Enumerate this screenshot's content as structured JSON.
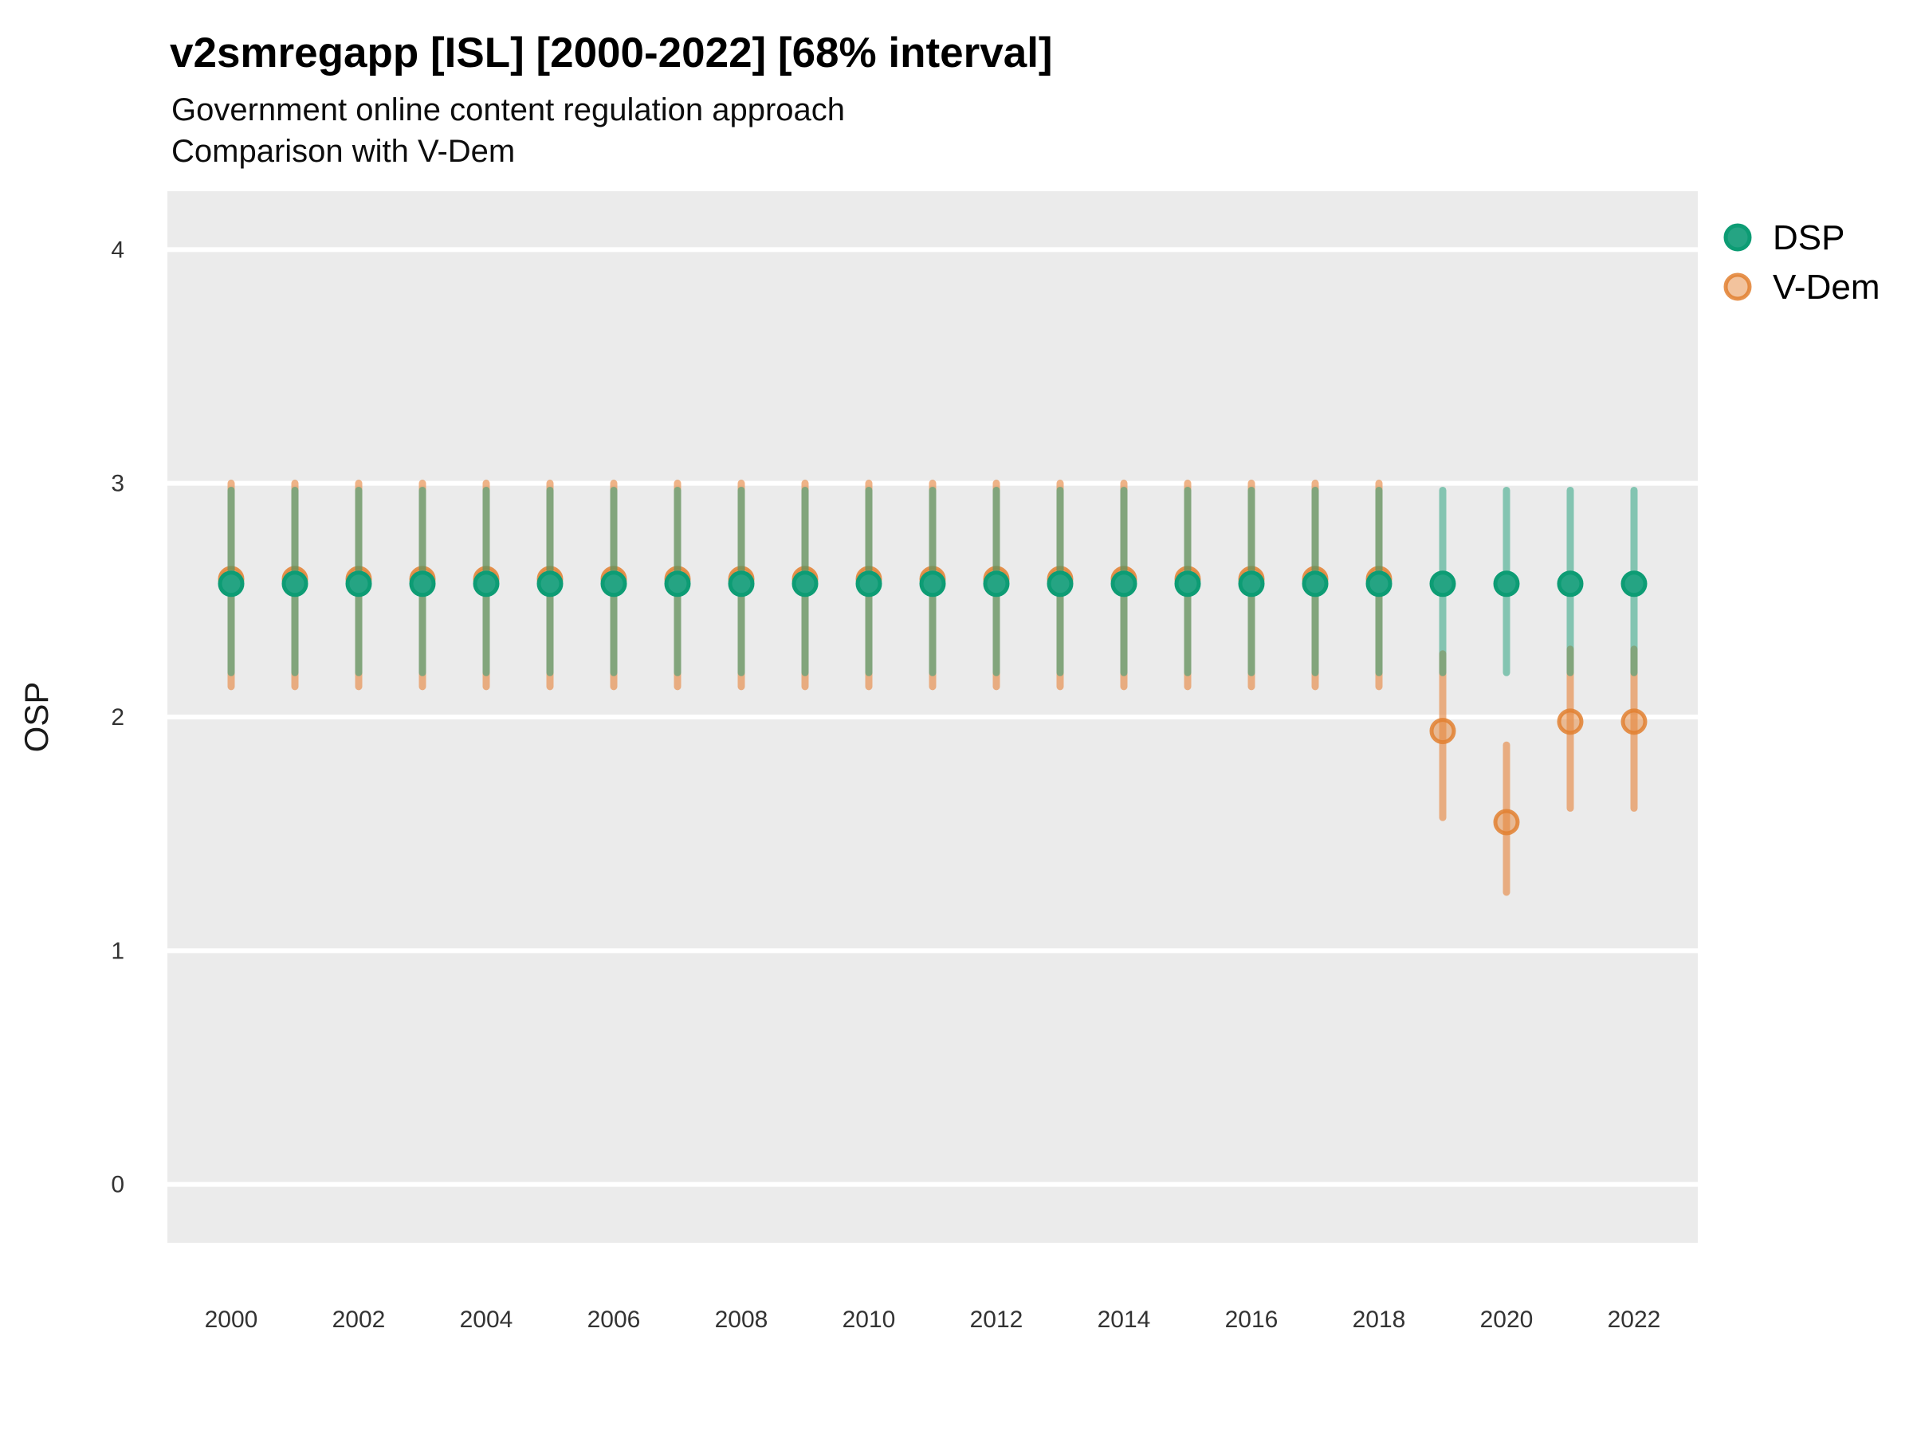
{
  "header": {
    "title": "v2smregapp [ISL] [2000-2022] [68% interval]",
    "subtitle_line1": "Government online content regulation approach",
    "subtitle_line2": "Comparison with V-Dem"
  },
  "chart_data": {
    "type": "pointrange",
    "title": "v2smregapp [ISL] [2000-2022] [68% interval]",
    "subtitle": [
      "Government online content regulation approach",
      "Comparison with V-Dem"
    ],
    "xlabel": "",
    "ylabel": "OSP",
    "xlim": [
      1999,
      2023
    ],
    "ylim": [
      -0.25,
      4.25
    ],
    "xticks": [
      2000,
      2002,
      2004,
      2006,
      2008,
      2010,
      2012,
      2014,
      2016,
      2018,
      2020,
      2022
    ],
    "yticks": [
      0,
      1,
      2,
      3,
      4
    ],
    "grid": "horizontal-major-only",
    "legend_position": "right",
    "interval_label": "68% interval",
    "colors": {
      "panel_bg": "#ebebeb",
      "grid_line": "#ffffff",
      "tick_text": "#333333",
      "axis_title_text": "#1a1a1a",
      "dsp_accent": "#1b9e77",
      "vdem_accent": "#e6873c"
    },
    "series": [
      {
        "name": "DSP",
        "color": "#1b9e77",
        "line_rgba": "rgba(27,158,119,0.50)",
        "dot_fill": "#25a483",
        "dot_stroke": "#0d9c74",
        "points": [
          {
            "year": 2000,
            "est": 2.57,
            "lo": 2.19,
            "hi": 2.97
          },
          {
            "year": 2001,
            "est": 2.57,
            "lo": 2.19,
            "hi": 2.97
          },
          {
            "year": 2002,
            "est": 2.57,
            "lo": 2.19,
            "hi": 2.97
          },
          {
            "year": 2003,
            "est": 2.57,
            "lo": 2.19,
            "hi": 2.97
          },
          {
            "year": 2004,
            "est": 2.57,
            "lo": 2.19,
            "hi": 2.97
          },
          {
            "year": 2005,
            "est": 2.57,
            "lo": 2.19,
            "hi": 2.97
          },
          {
            "year": 2006,
            "est": 2.57,
            "lo": 2.19,
            "hi": 2.97
          },
          {
            "year": 2007,
            "est": 2.57,
            "lo": 2.19,
            "hi": 2.97
          },
          {
            "year": 2008,
            "est": 2.57,
            "lo": 2.19,
            "hi": 2.97
          },
          {
            "year": 2009,
            "est": 2.57,
            "lo": 2.19,
            "hi": 2.97
          },
          {
            "year": 2010,
            "est": 2.57,
            "lo": 2.19,
            "hi": 2.97
          },
          {
            "year": 2011,
            "est": 2.57,
            "lo": 2.19,
            "hi": 2.97
          },
          {
            "year": 2012,
            "est": 2.57,
            "lo": 2.19,
            "hi": 2.97
          },
          {
            "year": 2013,
            "est": 2.57,
            "lo": 2.19,
            "hi": 2.97
          },
          {
            "year": 2014,
            "est": 2.57,
            "lo": 2.19,
            "hi": 2.97
          },
          {
            "year": 2015,
            "est": 2.57,
            "lo": 2.19,
            "hi": 2.97
          },
          {
            "year": 2016,
            "est": 2.57,
            "lo": 2.19,
            "hi": 2.97
          },
          {
            "year": 2017,
            "est": 2.57,
            "lo": 2.19,
            "hi": 2.97
          },
          {
            "year": 2018,
            "est": 2.57,
            "lo": 2.19,
            "hi": 2.97
          },
          {
            "year": 2019,
            "est": 2.57,
            "lo": 2.19,
            "hi": 2.97
          },
          {
            "year": 2020,
            "est": 2.57,
            "lo": 2.19,
            "hi": 2.97
          },
          {
            "year": 2021,
            "est": 2.57,
            "lo": 2.19,
            "hi": 2.97
          },
          {
            "year": 2022,
            "est": 2.57,
            "lo": 2.19,
            "hi": 2.97
          }
        ]
      },
      {
        "name": "V-Dem",
        "color": "#e6873c",
        "line_rgba": "rgba(230,139,70,0.65)",
        "dot_fill": "rgba(230,135,60,0.50)",
        "dot_stroke": "rgba(226,128,48,0.85)",
        "points": [
          {
            "year": 2000,
            "est": 2.59,
            "lo": 2.13,
            "hi": 3.0
          },
          {
            "year": 2001,
            "est": 2.59,
            "lo": 2.13,
            "hi": 3.0
          },
          {
            "year": 2002,
            "est": 2.59,
            "lo": 2.13,
            "hi": 3.0
          },
          {
            "year": 2003,
            "est": 2.59,
            "lo": 2.13,
            "hi": 3.0
          },
          {
            "year": 2004,
            "est": 2.59,
            "lo": 2.13,
            "hi": 3.0
          },
          {
            "year": 2005,
            "est": 2.59,
            "lo": 2.13,
            "hi": 3.0
          },
          {
            "year": 2006,
            "est": 2.59,
            "lo": 2.13,
            "hi": 3.0
          },
          {
            "year": 2007,
            "est": 2.59,
            "lo": 2.13,
            "hi": 3.0
          },
          {
            "year": 2008,
            "est": 2.59,
            "lo": 2.13,
            "hi": 3.0
          },
          {
            "year": 2009,
            "est": 2.59,
            "lo": 2.13,
            "hi": 3.0
          },
          {
            "year": 2010,
            "est": 2.59,
            "lo": 2.13,
            "hi": 3.0
          },
          {
            "year": 2011,
            "est": 2.59,
            "lo": 2.13,
            "hi": 3.0
          },
          {
            "year": 2012,
            "est": 2.59,
            "lo": 2.13,
            "hi": 3.0
          },
          {
            "year": 2013,
            "est": 2.59,
            "lo": 2.13,
            "hi": 3.0
          },
          {
            "year": 2014,
            "est": 2.59,
            "lo": 2.13,
            "hi": 3.0
          },
          {
            "year": 2015,
            "est": 2.59,
            "lo": 2.13,
            "hi": 3.0
          },
          {
            "year": 2016,
            "est": 2.59,
            "lo": 2.13,
            "hi": 3.0
          },
          {
            "year": 2017,
            "est": 2.59,
            "lo": 2.13,
            "hi": 3.0
          },
          {
            "year": 2018,
            "est": 2.59,
            "lo": 2.13,
            "hi": 3.0
          },
          {
            "year": 2019,
            "est": 1.94,
            "lo": 1.57,
            "hi": 2.27
          },
          {
            "year": 2020,
            "est": 1.55,
            "lo": 1.25,
            "hi": 1.88
          },
          {
            "year": 2021,
            "est": 1.98,
            "lo": 1.61,
            "hi": 2.29
          },
          {
            "year": 2022,
            "est": 1.98,
            "lo": 1.61,
            "hi": 2.29
          }
        ]
      }
    ]
  }
}
